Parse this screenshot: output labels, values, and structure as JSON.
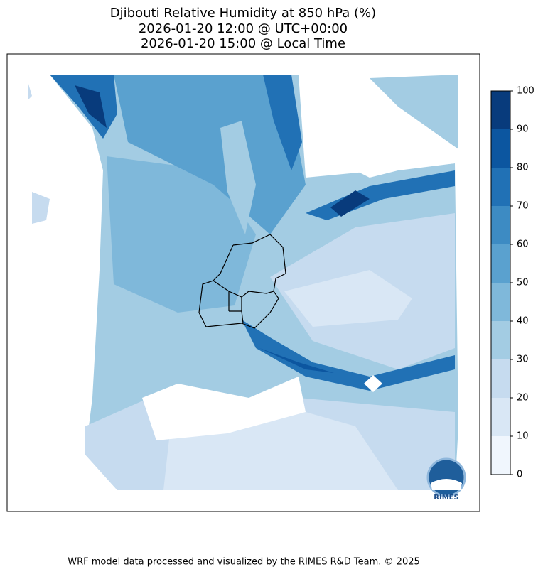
{
  "title": [
    "Djibouti Relative Humidity at 850 hPa (%)",
    "2026-01-20 12:00 @ UTC+00:00",
    "2026-01-20 15:00 @ Local Time"
  ],
  "colorbar": {
    "ticks": [
      0,
      10,
      20,
      30,
      40,
      50,
      60,
      70,
      80,
      90,
      100
    ],
    "colors": [
      "#f0f6fd",
      "#d9e7f5",
      "#c6dbef",
      "#a3cce3",
      "#7fb8da",
      "#5aa1cf",
      "#3d8bc3",
      "#2171b5",
      "#0c56a0",
      "#083b7c"
    ]
  },
  "logo": "RIMES",
  "footer": "WRF model data processed and visualized by the RIMES R&D Team. © 2025"
}
